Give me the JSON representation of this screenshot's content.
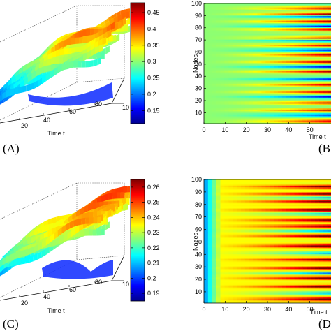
{
  "figure": {
    "panels": [
      {
        "id": "A",
        "label": "(A)"
      },
      {
        "id": "B",
        "label": "(B"
      },
      {
        "id": "C",
        "label": "(C)"
      },
      {
        "id": "D",
        "label": "(D"
      }
    ]
  },
  "chart_data": [
    {
      "panel": "A",
      "type": "surface3d",
      "xlabel": "Time t",
      "xticks": [
        "20",
        "40",
        "60",
        "80"
      ],
      "depth_tick": "10",
      "colorbar": {
        "min": 0.11,
        "max": 0.48,
        "ticks": [
          "0.45",
          "0.4",
          "0.35",
          "0.3",
          "0.25",
          "0.2",
          "0.15"
        ],
        "tick_values": [
          0.45,
          0.4,
          0.35,
          0.3,
          0.25,
          0.2,
          0.15
        ],
        "colormap": "jet"
      }
    },
    {
      "panel": "B",
      "type": "heatmap",
      "xlabel": "Time t",
      "ylabel": "Nodes",
      "xticks": [
        "0",
        "10",
        "20",
        "30",
        "40",
        "50"
      ],
      "xtick_values": [
        0,
        10,
        20,
        30,
        40,
        50
      ],
      "xlim": [
        0,
        60
      ],
      "yticks": [
        "10",
        "20",
        "30",
        "40",
        "50",
        "60",
        "70",
        "80",
        "90",
        "100"
      ],
      "ytick_values": [
        10,
        20,
        30,
        40,
        50,
        60,
        70,
        80,
        90,
        100
      ],
      "ylim": [
        1,
        100
      ],
      "colormap": "jet",
      "value_range": [
        0.11,
        0.48
      ],
      "base_value": 0.3,
      "bright_row_bands": [
        3,
        12,
        18,
        27,
        33,
        44,
        52,
        58,
        66,
        72,
        79,
        86,
        92,
        97
      ],
      "dark_row_bands": [
        8,
        23,
        38,
        48,
        62,
        70,
        82,
        90
      ],
      "contrast_grows_with_time": true
    },
    {
      "panel": "C",
      "type": "surface3d",
      "xlabel": "Time t",
      "xticks": [
        "20",
        "40",
        "60",
        "80"
      ],
      "depth_tick": "10",
      "colorbar": {
        "min": 0.185,
        "max": 0.265,
        "ticks": [
          "0.26",
          "0.25",
          "0.24",
          "0.23",
          "0.22",
          "0.21",
          "0.2",
          "0.19"
        ],
        "tick_values": [
          0.26,
          0.25,
          0.24,
          0.23,
          0.22,
          0.21,
          0.2,
          0.19
        ],
        "colormap": "jet"
      }
    },
    {
      "panel": "D",
      "type": "heatmap",
      "xlabel": "Time t",
      "ylabel": "Nodes",
      "xticks": [
        "0",
        "10",
        "20",
        "30",
        "40",
        "50"
      ],
      "xtick_values": [
        0,
        10,
        20,
        30,
        40,
        50
      ],
      "xlim": [
        0,
        60
      ],
      "yticks": [
        "10",
        "20",
        "30",
        "40",
        "50",
        "60",
        "70",
        "80",
        "90",
        "100"
      ],
      "ytick_values": [
        10,
        20,
        30,
        40,
        50,
        60,
        70,
        80,
        90,
        100
      ],
      "ylim": [
        1,
        100
      ],
      "colormap": "jet",
      "value_range": [
        0.185,
        0.265
      ],
      "base_value": 0.235,
      "early_time_value": 0.205,
      "bright_row_bands": [
        4,
        14,
        21,
        29,
        36,
        47,
        55,
        63,
        68,
        76,
        83,
        89,
        95
      ],
      "dark_row_bands": [
        9,
        25,
        41,
        59,
        73,
        86
      ],
      "contrast_grows_with_time": true
    }
  ]
}
